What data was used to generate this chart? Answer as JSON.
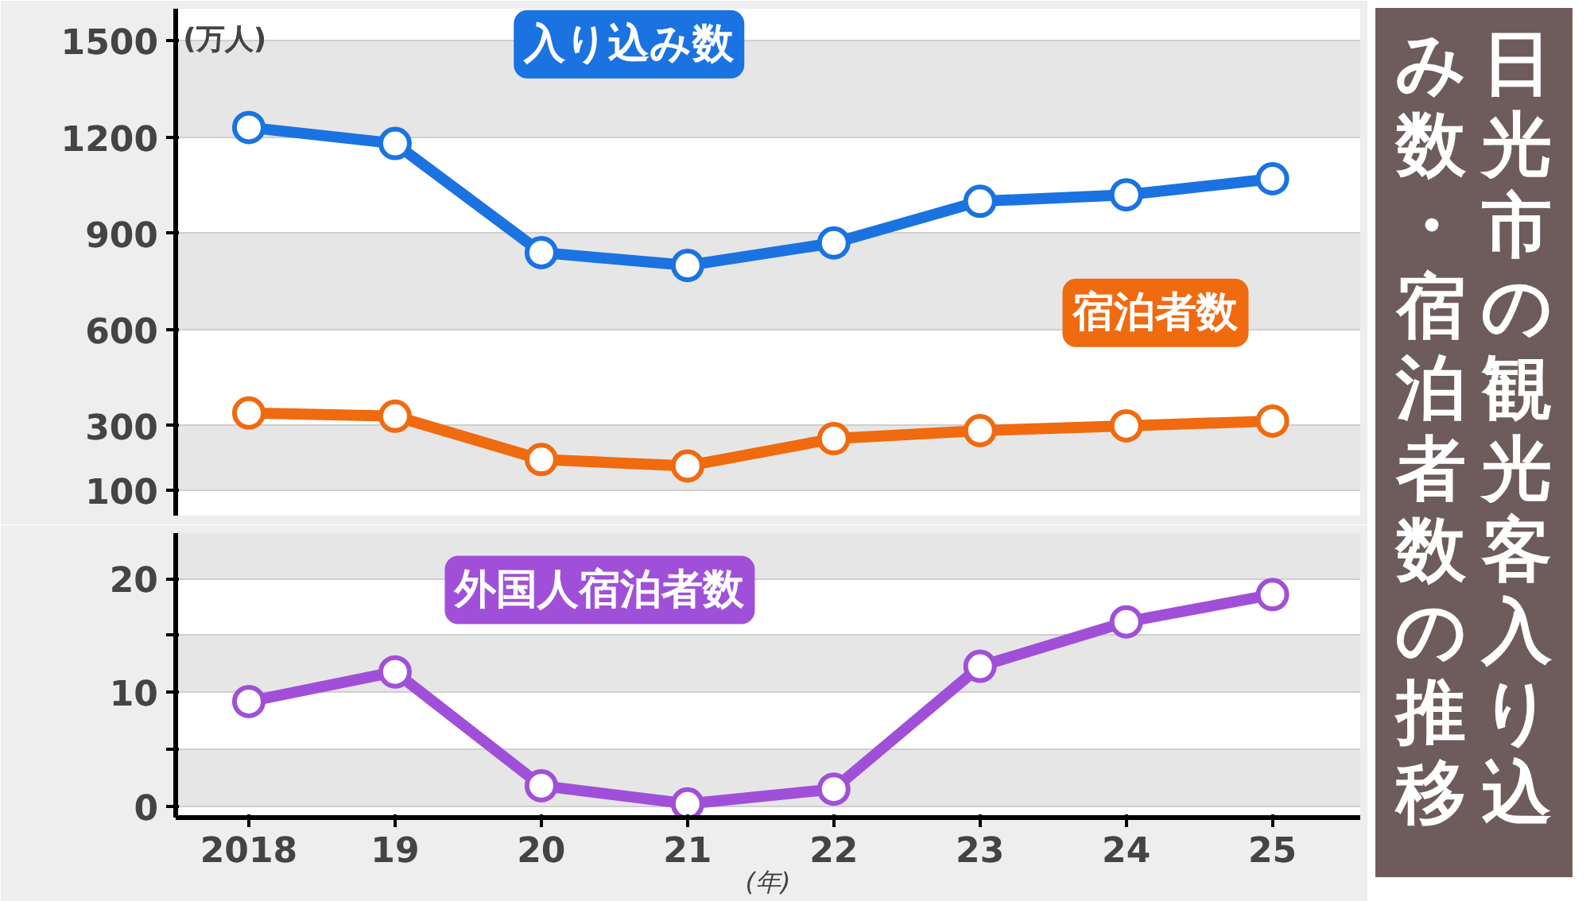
{
  "chart_data": [
    {
      "type": "line",
      "title": "日光市の観光客入り込み数・宿泊者数の推移",
      "ylabel": "(万人)",
      "categories": [
        "2018",
        "19",
        "20",
        "21",
        "22",
        "23",
        "24",
        "25"
      ],
      "ylim": [
        20,
        1600
      ],
      "yticks": [
        100,
        300,
        600,
        900,
        1200,
        1500
      ],
      "tick_labels": "y",
      "grid": "y",
      "marker": "circle",
      "line_style": "solid",
      "series": [
        {
          "name": "入り込み数",
          "color": "#1a73e0",
          "values": [
            1230,
            1180,
            840,
            800,
            870,
            1000,
            1020,
            1070
          ]
        },
        {
          "name": "宿泊者数",
          "color": "#f06a10",
          "values": [
            340,
            330,
            195,
            175,
            260,
            285,
            300,
            315
          ]
        }
      ]
    },
    {
      "type": "line",
      "xlabel": "(年)",
      "categories": [
        "2018",
        "19",
        "20",
        "21",
        "22",
        "23",
        "24",
        "25"
      ],
      "ylim": [
        -1,
        24
      ],
      "yticks": [
        0,
        {
          "value": 5,
          "label": null
        },
        10,
        {
          "value": 15,
          "label": null
        },
        20
      ],
      "grid": "y",
      "marker": "circle",
      "line_style": "solid",
      "series": [
        {
          "name": "外国人宿泊者数",
          "color": "#a050d8",
          "values": [
            9.2,
            11.8,
            1.8,
            0.2,
            1.5,
            12.3,
            16.2,
            18.6
          ]
        }
      ]
    }
  ]
}
